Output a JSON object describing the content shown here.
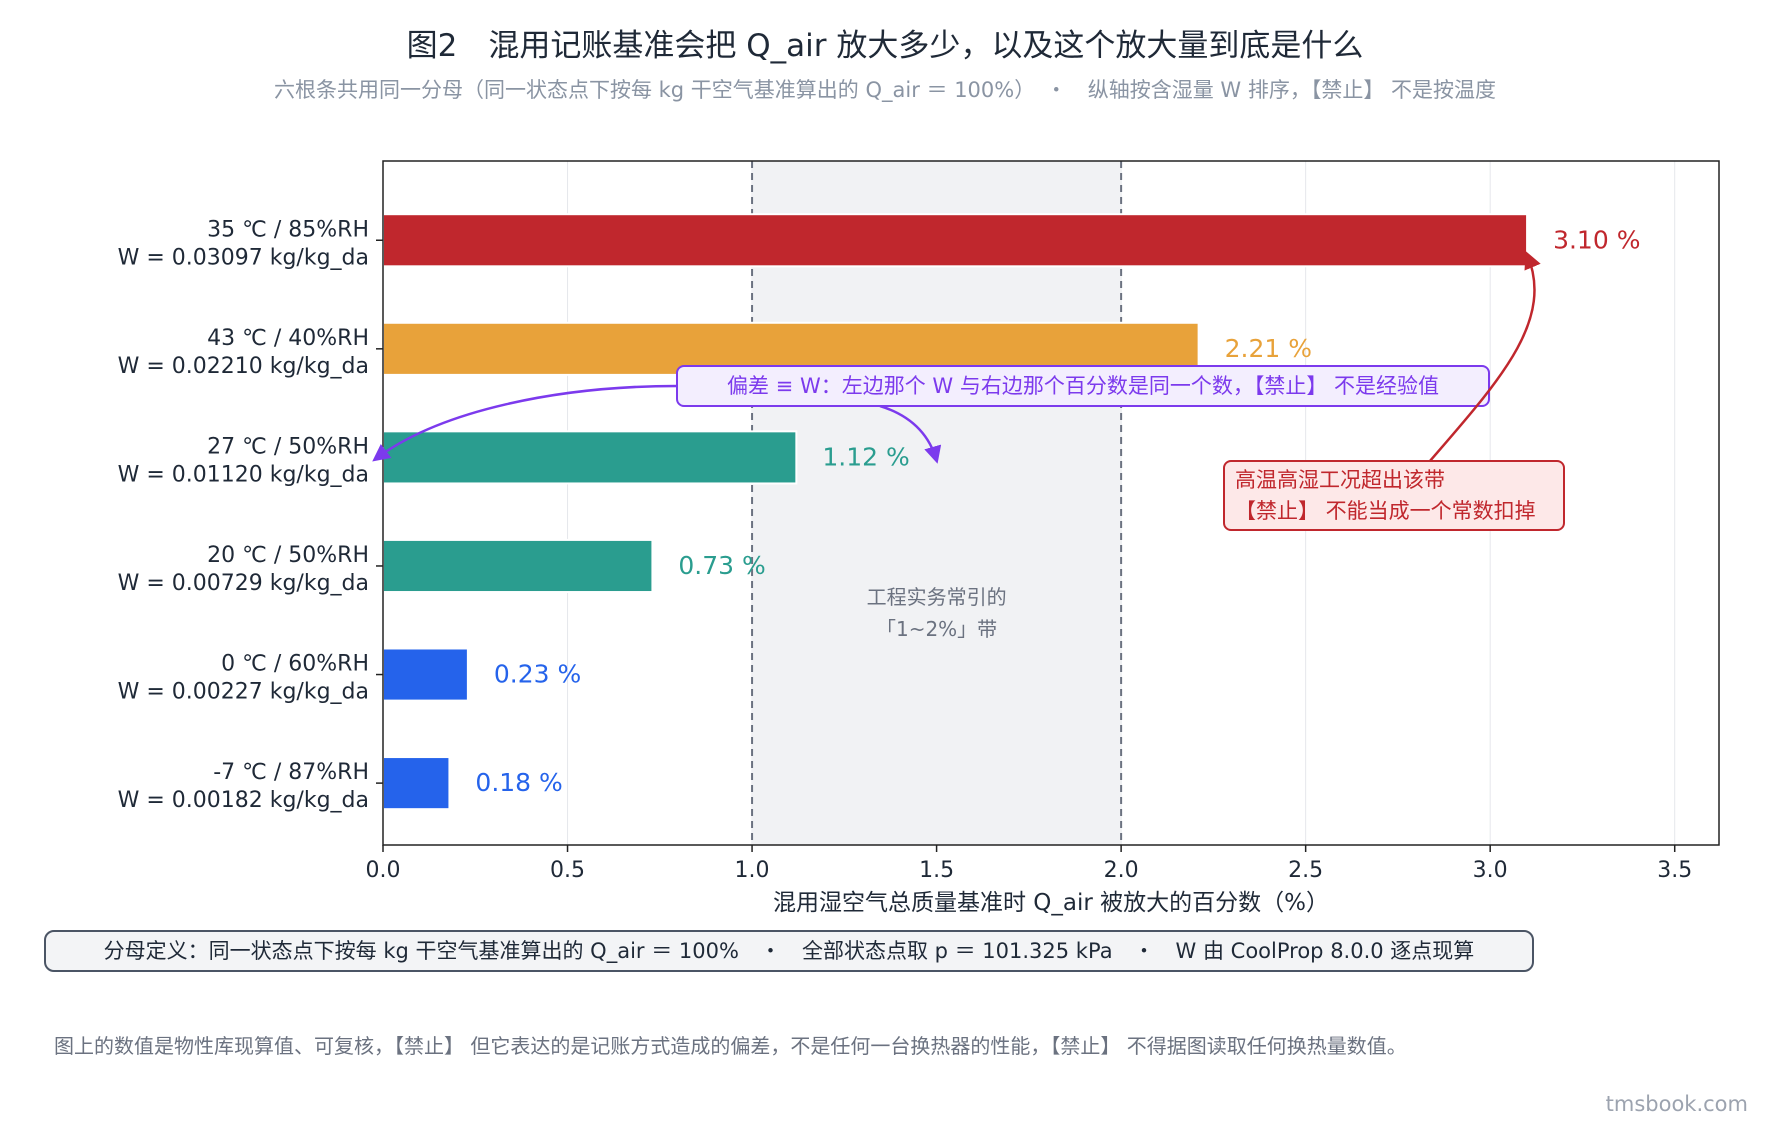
{
  "title": "图2　混用记账基准会把 Q_air 放大多少，以及这个放大量到底是什么",
  "subtitle": "六根条共用同一分母（同一状态点下按每 kg 干空气基准算出的 Q_air ＝ 100%）　・　纵轴按含湿量 W 排序，【禁止】 不是按温度",
  "footer_box": "分母定义：同一状态点下按每 kg 干空气基准算出的 Q_air ＝ 100%　・　全部状态点取 p ＝ 101.325 kPa　・　W 由 CoolProp 8.0.0 逐点现算",
  "bottom_note": "图上的数值是物性库现算值、可复核，【禁止】 但它表达的是记账方式造成的偏差，不是任何一台换热器的性能，【禁止】 不得据图读取任何换热量数值。",
  "watermark": "tmsbook.com",
  "chart_data": {
    "type": "bar",
    "orientation": "horizontal",
    "xlabel": "混用湿空气总质量基准时 Q_air 被放大的百分数（%）",
    "xlim": [
      0,
      3.62
    ],
    "xticks": [
      "0.0",
      "0.5",
      "1.0",
      "1.5",
      "2.0",
      "2.5",
      "3.0",
      "3.5"
    ],
    "xtick_values": [
      0,
      0.5,
      1.0,
      1.5,
      2.0,
      2.5,
      3.0,
      3.5
    ],
    "grid": "vertical",
    "categories": [
      {
        "line1": "35 ℃ / 85%RH",
        "line2": "W = 0.03097 kg/kg_da"
      },
      {
        "line1": "43 ℃ / 40%RH",
        "line2": "W = 0.02210 kg/kg_da"
      },
      {
        "line1": "27 ℃ / 50%RH",
        "line2": "W = 0.01120 kg/kg_da"
      },
      {
        "line1": "20 ℃ / 50%RH",
        "line2": "W = 0.00729 kg/kg_da"
      },
      {
        "line1": "0 ℃ / 60%RH",
        "line2": "W = 0.00227 kg/kg_da"
      },
      {
        "line1": "-7 ℃ / 87%RH",
        "line2": "W = 0.00182 kg/kg_da"
      }
    ],
    "values": [
      3.1,
      2.21,
      1.12,
      0.73,
      0.23,
      0.18
    ],
    "value_labels": [
      "3.10 %",
      "2.21 %",
      "1.12 %",
      "0.73 %",
      "0.23 %",
      "0.18 %"
    ],
    "bar_colors": [
      "#c0272d",
      "#e8a23a",
      "#2a9d8f",
      "#2a9d8f",
      "#2563eb",
      "#2563eb"
    ],
    "band": {
      "from": 1.0,
      "to": 2.0,
      "label_line1": "工程实务常引的",
      "label_line2": "「1~2%」带"
    },
    "annotations": {
      "purple": {
        "text": "偏差 ≡ W：左边那个 W 与右边那个百分数是同一个数，【禁止】 不是经验值",
        "color": "#7c3aed"
      },
      "red": {
        "line1": "高温高湿工况超出该带",
        "line2": "【禁止】 不能当成一个常数扣掉",
        "color": "#c0272d"
      }
    }
  }
}
